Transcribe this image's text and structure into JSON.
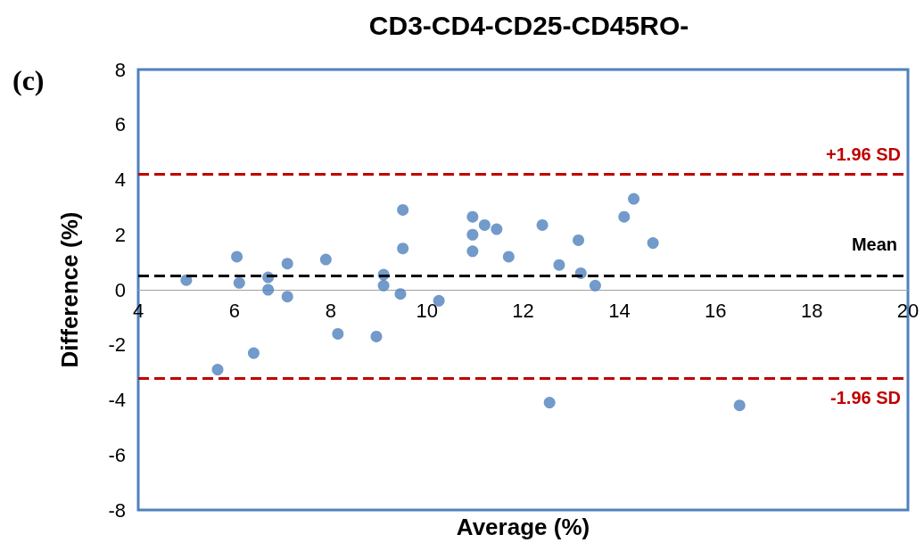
{
  "chart_data": {
    "type": "scatter",
    "title": "CD3-CD4-CD25-CD45RO-",
    "xlabel": "Average (%)",
    "ylabel": "Difference (%)",
    "annotations": [
      "(c)"
    ],
    "x": [
      5.0,
      5.65,
      6.05,
      6.1,
      6.4,
      6.7,
      6.7,
      7.1,
      7.1,
      7.9,
      8.15,
      8.95,
      9.1,
      9.1,
      9.45,
      9.5,
      9.5,
      10.25,
      10.95,
      10.95,
      10.95,
      11.2,
      11.45,
      11.7,
      12.4,
      12.55,
      12.75,
      13.15,
      13.2,
      13.5,
      14.1,
      14.3,
      14.7,
      16.5
    ],
    "series": [
      {
        "color": "#4f81bd",
        "values": [
          0.35,
          -2.9,
          1.2,
          0.25,
          -2.3,
          0.45,
          0.0,
          0.95,
          -0.25,
          1.1,
          -1.6,
          -1.7,
          0.55,
          0.15,
          -0.15,
          2.9,
          1.5,
          -0.4,
          2.65,
          2.0,
          1.4,
          2.35,
          2.2,
          1.2,
          2.35,
          -4.1,
          0.9,
          1.8,
          0.6,
          0.15,
          2.65,
          3.3,
          1.7,
          -4.2
        ]
      }
    ],
    "xlim": [
      4,
      20
    ],
    "xticks": [
      4,
      6,
      8,
      10,
      12,
      14,
      16,
      18,
      20
    ],
    "ylim": [
      -8,
      8
    ],
    "yticks": [
      -8,
      -6,
      -4,
      -2,
      0,
      2,
      4,
      6,
      8
    ],
    "ref_lines": [
      {
        "axis": "y",
        "value": 4.2,
        "label": "+1.96 SD",
        "color": "#c00000",
        "line_style": "dashed"
      },
      {
        "axis": "y",
        "value": 0.5,
        "label": "Mean",
        "color": "#000000",
        "line_style": "dashed"
      },
      {
        "axis": "y",
        "value": -3.2,
        "label": "-1.96 SD",
        "color": "#c00000",
        "line_style": "dashed"
      }
    ],
    "marker": "circle"
  }
}
